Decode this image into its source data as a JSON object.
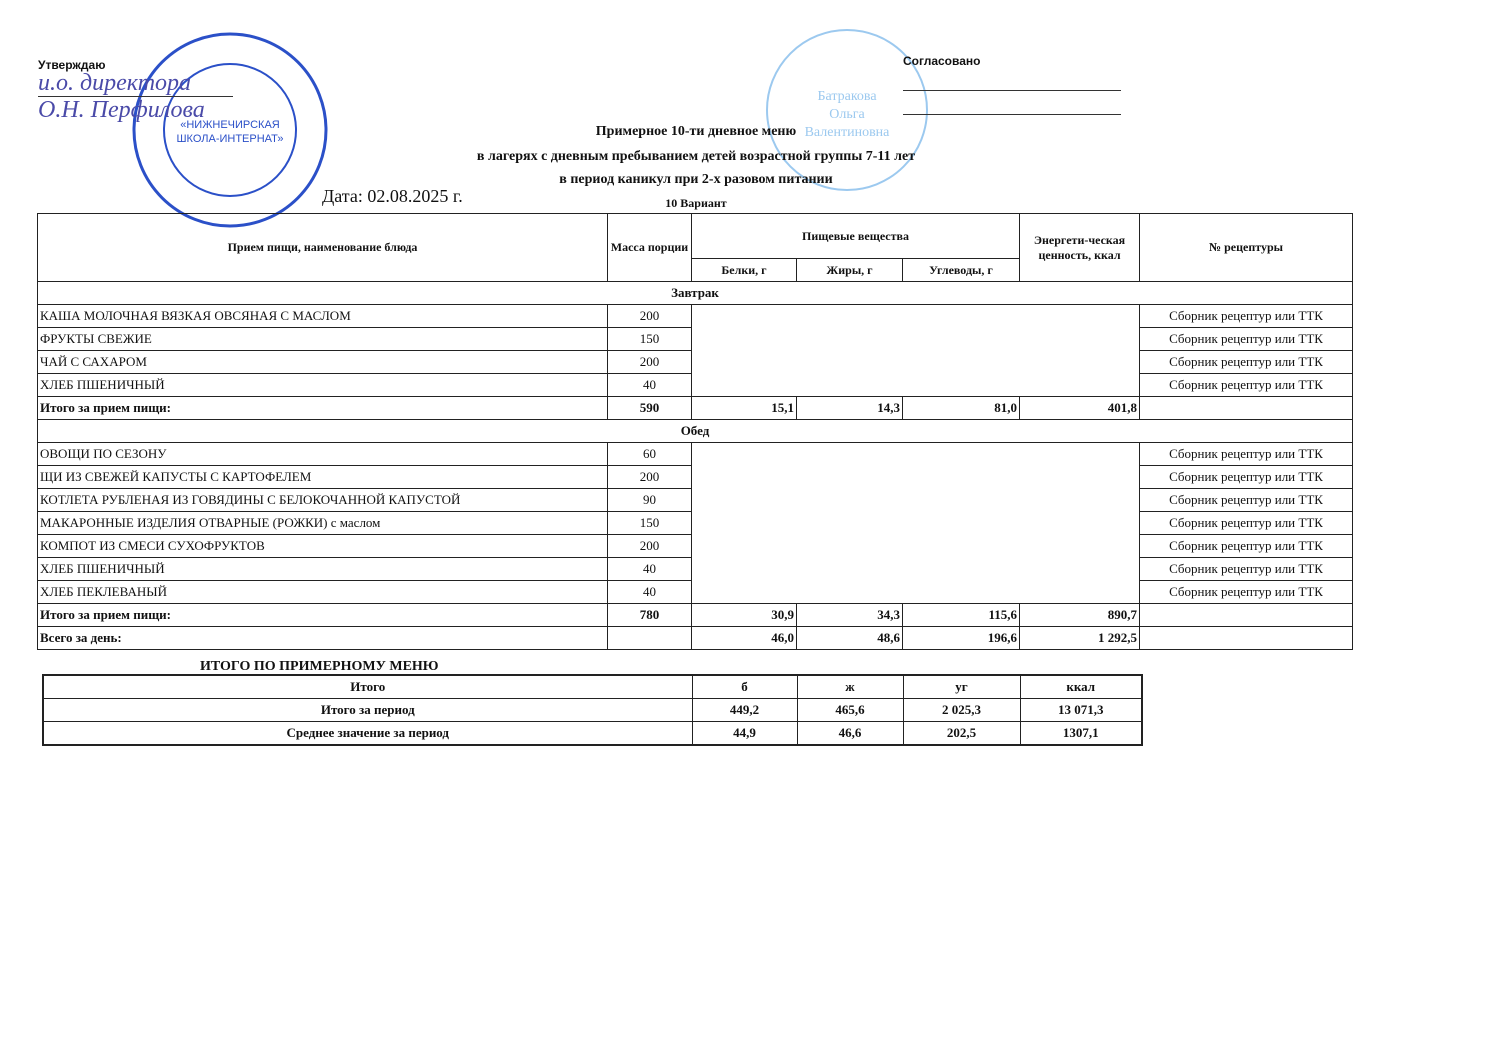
{
  "approve": {
    "label": "Утверждаю",
    "signature_text": "и.о. директора О.Н. Перфилова"
  },
  "agreed": {
    "label": "Согласовано",
    "stamp_name": "Батракова Ольга Валентиновна"
  },
  "stamp_left": {
    "text": "«НИЖНЕЧИРСКАЯ ШКОЛА-ИНТЕРНАТ»",
    "color": "#2b50c8"
  },
  "stamp_right": {
    "color": "#7ab8e8"
  },
  "title": {
    "line1": "Примерное 10-ти дневное меню",
    "line2": "в лагерях с  дневным пребыванием детей возрастной группы 7-11 лет",
    "line3": "в период каникул при 2-х разовом питании",
    "variant": "10 Вариант",
    "date": "Дата: 02.08.2025 г."
  },
  "header": {
    "dish": "Прием пищи, наименование блюда",
    "mass": "Масса порции",
    "nutrients": "Пищевые вещества",
    "protein": "Белки, г",
    "fat": "Жиры, г",
    "carbs": "Углеводы, г",
    "energy": "Энергети-ческая ценность, ккал",
    "recipe": "№ рецептуры"
  },
  "breakfast": {
    "title": "Завтрак",
    "items": [
      {
        "name": "КАША МОЛОЧНАЯ ВЯЗКАЯ ОВСЯНАЯ С МАСЛОМ",
        "mass": "200",
        "recipe": "Сборник рецептур или ТТК"
      },
      {
        "name": "ФРУКТЫ СВЕЖИЕ",
        "mass": "150",
        "recipe": "Сборник рецептур или ТТК"
      },
      {
        "name": "ЧАЙ С САХАРОМ",
        "mass": "200",
        "recipe": "Сборник рецептур или ТТК"
      },
      {
        "name": "ХЛЕБ ПШЕНИЧНЫЙ",
        "mass": "40",
        "recipe": "Сборник рецептур или ТТК"
      }
    ],
    "total": {
      "label": "Итого за прием пищи:",
      "mass": "590",
      "protein": "15,1",
      "fat": "14,3",
      "carbs": "81,0",
      "energy": "401,8"
    }
  },
  "lunch": {
    "title": "Обед",
    "items": [
      {
        "name": "ОВОЩИ ПО СЕЗОНУ",
        "mass": "60",
        "recipe": "Сборник рецептур или ТТК"
      },
      {
        "name": "ЩИ ИЗ СВЕЖЕЙ КАПУСТЫ С КАРТОФЕЛЕМ",
        "mass": "200",
        "recipe": "Сборник рецептур или ТТК"
      },
      {
        "name": "КОТЛЕТА РУБЛЕНАЯ ИЗ ГОВЯДИНЫ С БЕЛОКОЧАННОЙ КАПУСТОЙ",
        "mass": "90",
        "recipe": "Сборник рецептур или ТТК"
      },
      {
        "name": "МАКАРОННЫЕ ИЗДЕЛИЯ ОТВАРНЫЕ (РОЖКИ) с маслом",
        "mass": "150",
        "recipe": "Сборник рецептур или ТТК"
      },
      {
        "name": "КОМПОТ ИЗ СМЕСИ СУХОФРУКТОВ",
        "mass": "200",
        "recipe": "Сборник рецептур или ТТК"
      },
      {
        "name": "ХЛЕБ ПШЕНИЧНЫЙ",
        "mass": "40",
        "recipe": "Сборник рецептур или ТТК"
      },
      {
        "name": "ХЛЕБ ПЕКЛЕВАНЫЙ",
        "mass": "40",
        "recipe": "Сборник рецептур или ТТК"
      }
    ],
    "total": {
      "label": "Итого за прием пищи:",
      "mass": "780",
      "protein": "30,9",
      "fat": "34,3",
      "carbs": "115,6",
      "energy": "890,7"
    }
  },
  "day_total": {
    "label": "Всего за день:",
    "protein": "46,0",
    "fat": "48,6",
    "carbs": "196,6",
    "energy": "1 292,5"
  },
  "summary": {
    "title": "ИТОГО ПО ПРИМЕРНОМУ МЕНЮ",
    "header": [
      "Итого",
      "б",
      "ж",
      "уг",
      "ккал"
    ],
    "rows": [
      [
        "Итого за период",
        "449,2",
        "465,6",
        "2 025,3",
        "13 071,3"
      ],
      [
        "Среднее значение за период",
        "44,9",
        "46,6",
        "202,5",
        "1307,1"
      ]
    ]
  }
}
